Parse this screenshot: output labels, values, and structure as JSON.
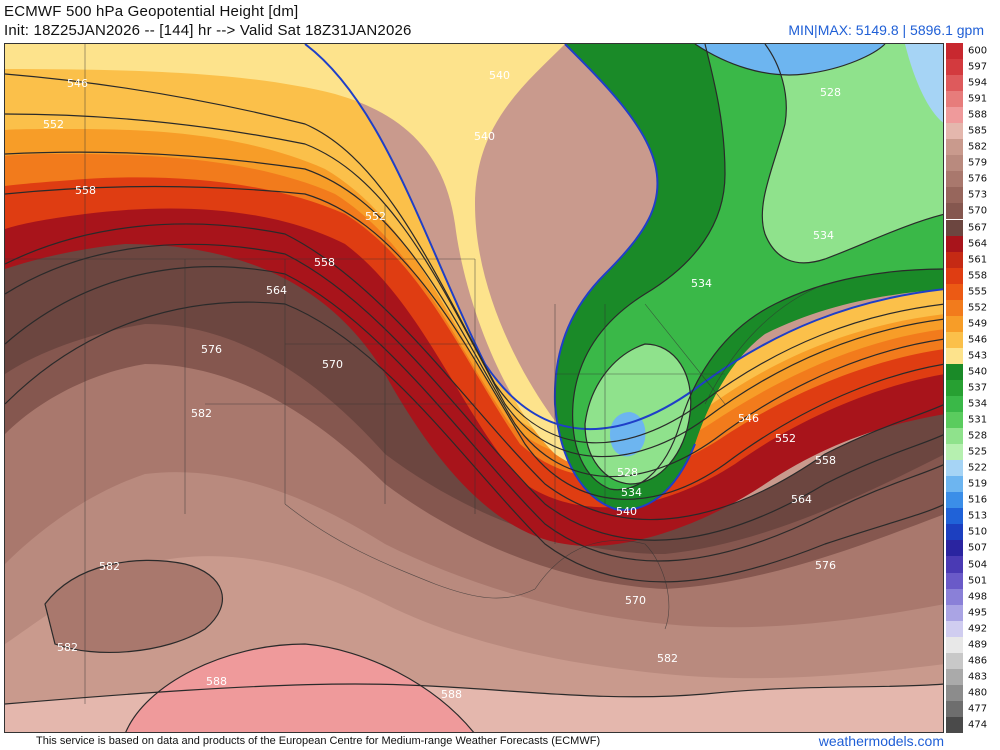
{
  "header": {
    "title": "ECMWF 500 hPa Geopotential Height [dm]",
    "subtitle": "Init: 18Z25JAN2026 -- [144] hr --> Valid Sat 18Z31JAN2026",
    "minmax": "MIN|MAX: 5149.8 | 5896.1 gpm"
  },
  "colorbar": [
    {
      "label": "600",
      "color": "#c8282f"
    },
    {
      "label": "597",
      "color": "#d33a3e"
    },
    {
      "label": "594",
      "color": "#de5a5c"
    },
    {
      "label": "591",
      "color": "#e77c7b"
    },
    {
      "label": "588",
      "color": "#ef9a9b"
    },
    {
      "label": "585",
      "color": "#e4b7ad"
    },
    {
      "label": "582",
      "color": "#c99a8d"
    },
    {
      "label": "579",
      "color": "#b98a7e"
    },
    {
      "label": "576",
      "color": "#a9786d"
    },
    {
      "label": "573",
      "color": "#97665c"
    },
    {
      "label": "570",
      "color": "#85574f"
    },
    {
      "label": "567",
      "color": "#6c4640"
    },
    {
      "label": "564",
      "color": "#a8141b"
    },
    {
      "label": "561",
      "color": "#c52a14"
    },
    {
      "label": "558",
      "color": "#df3d12"
    },
    {
      "label": "555",
      "color": "#ec5a14"
    },
    {
      "label": "552",
      "color": "#f27b1c"
    },
    {
      "label": "549",
      "color": "#f79d28"
    },
    {
      "label": "546",
      "color": "#fbc04a"
    },
    {
      "label": "543",
      "color": "#fde38c"
    },
    {
      "label": "540",
      "color": "#1a8a28"
    },
    {
      "label": "537",
      "color": "#27a032"
    },
    {
      "label": "534",
      "color": "#3ab848"
    },
    {
      "label": "531",
      "color": "#5acc5e"
    },
    {
      "label": "528",
      "color": "#8fe28c"
    },
    {
      "label": "525",
      "color": "#b6f0b0"
    },
    {
      "label": "522",
      "color": "#a6d4f5"
    },
    {
      "label": "519",
      "color": "#6db5f0"
    },
    {
      "label": "516",
      "color": "#3b8ee8"
    },
    {
      "label": "513",
      "color": "#2062d8"
    },
    {
      "label": "510",
      "color": "#1c3fc0"
    },
    {
      "label": "507",
      "color": "#2a24a0"
    },
    {
      "label": "504",
      "color": "#4a3ab4"
    },
    {
      "label": "501",
      "color": "#6a5ac8"
    },
    {
      "label": "498",
      "color": "#8a80d8"
    },
    {
      "label": "495",
      "color": "#aaa4e4"
    },
    {
      "label": "492",
      "color": "#d0cdf0"
    },
    {
      "label": "489",
      "color": "#e8e8e8"
    },
    {
      "label": "486",
      "color": "#c8c8c8"
    },
    {
      "label": "483",
      "color": "#aaaaaa"
    },
    {
      "label": "480",
      "color": "#8c8c8c"
    },
    {
      "label": "477",
      "color": "#6e6e6e"
    },
    {
      "label": "474",
      "color": "#4a4a4a"
    }
  ],
  "contour_labels": [
    "546",
    "552",
    "558",
    "564",
    "576",
    "570",
    "582",
    "582",
    "582",
    "588",
    "588",
    "582",
    "570",
    "576",
    "564",
    "558",
    "552",
    "546",
    "540",
    "534",
    "528",
    "534",
    "534",
    "540",
    "528",
    "552",
    "558",
    "540",
    "546"
  ],
  "footer": {
    "credit": "This service is based on data and products of the European Centre for Medium-range Weather Forecasts (ECMWF)",
    "site": "weathermodels.com"
  }
}
